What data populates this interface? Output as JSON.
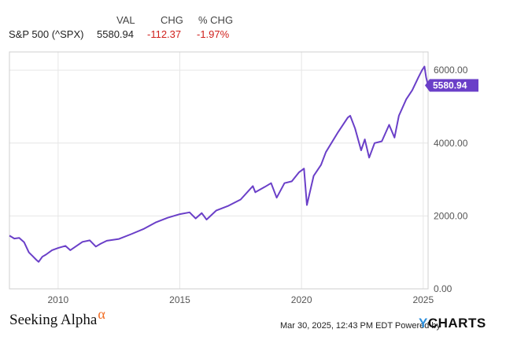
{
  "header": {
    "col_val": "VAL",
    "col_chg": "CHG",
    "col_pct": "% CHG",
    "symbol": "S&P 500 (^SPX)",
    "val": "5580.94",
    "chg": "-112.37",
    "pct": "-1.97%",
    "negative_color": "#d0211d"
  },
  "chart_data": {
    "type": "line",
    "title": "",
    "xlabel": "",
    "ylabel": "",
    "xlim": [
      2008.0,
      2025.2
    ],
    "ylim": [
      0,
      6500
    ],
    "x_ticks": [
      2010,
      2015,
      2020,
      2025
    ],
    "x_tick_labels": [
      "2010",
      "2015",
      "2020",
      "2025"
    ],
    "y_ticks": [
      0,
      2000,
      4000,
      6000
    ],
    "y_tick_labels": [
      "0.00",
      "2000.00",
      "4000.00",
      "6000.00"
    ],
    "y_axis_side": "right",
    "grid": true,
    "series": [
      {
        "name": "S&P 500 (^SPX)",
        "color": "#6a3fc8",
        "x": [
          2008.0,
          2008.2,
          2008.4,
          2008.6,
          2008.8,
          2008.95,
          2009.1,
          2009.2,
          2009.35,
          2009.5,
          2009.75,
          2010.0,
          2010.3,
          2010.5,
          2010.7,
          2011.0,
          2011.3,
          2011.55,
          2011.75,
          2012.0,
          2012.5,
          2013.0,
          2013.5,
          2014.0,
          2014.5,
          2015.0,
          2015.4,
          2015.65,
          2015.9,
          2016.1,
          2016.5,
          2017.0,
          2017.5,
          2018.0,
          2018.1,
          2018.5,
          2018.75,
          2018.98,
          2019.3,
          2019.6,
          2019.9,
          2020.1,
          2020.22,
          2020.5,
          2020.8,
          2021.0,
          2021.5,
          2021.9,
          2022.0,
          2022.2,
          2022.45,
          2022.6,
          2022.78,
          2023.0,
          2023.3,
          2023.6,
          2023.82,
          2024.0,
          2024.3,
          2024.55,
          2024.8,
          2024.95,
          2025.05,
          2025.12,
          2025.2
        ],
        "y": [
          1460,
          1380,
          1400,
          1280,
          1000,
          900,
          800,
          740,
          880,
          940,
          1060,
          1120,
          1180,
          1060,
          1150,
          1290,
          1330,
          1160,
          1240,
          1320,
          1370,
          1500,
          1640,
          1820,
          1950,
          2050,
          2100,
          1930,
          2080,
          1900,
          2150,
          2280,
          2450,
          2820,
          2650,
          2800,
          2900,
          2500,
          2900,
          2950,
          3200,
          3300,
          2300,
          3100,
          3400,
          3750,
          4300,
          4700,
          4750,
          4400,
          3800,
          4100,
          3600,
          4000,
          4050,
          4500,
          4150,
          4750,
          5200,
          5450,
          5800,
          6000,
          6100,
          5800,
          5580.94
        ]
      }
    ],
    "last_value_label": "5580.94"
  },
  "footer": {
    "timestamp": "Mar 30, 2025, 12:43 PM EDT  Powered by",
    "brand_left": "Seeking Alpha",
    "brand_left_mark": "α",
    "brand_right_y": "Y",
    "brand_right_rest": "CHARTS",
    "accent": "#f26b21",
    "ycharts_blue": "#2d8fdc"
  }
}
